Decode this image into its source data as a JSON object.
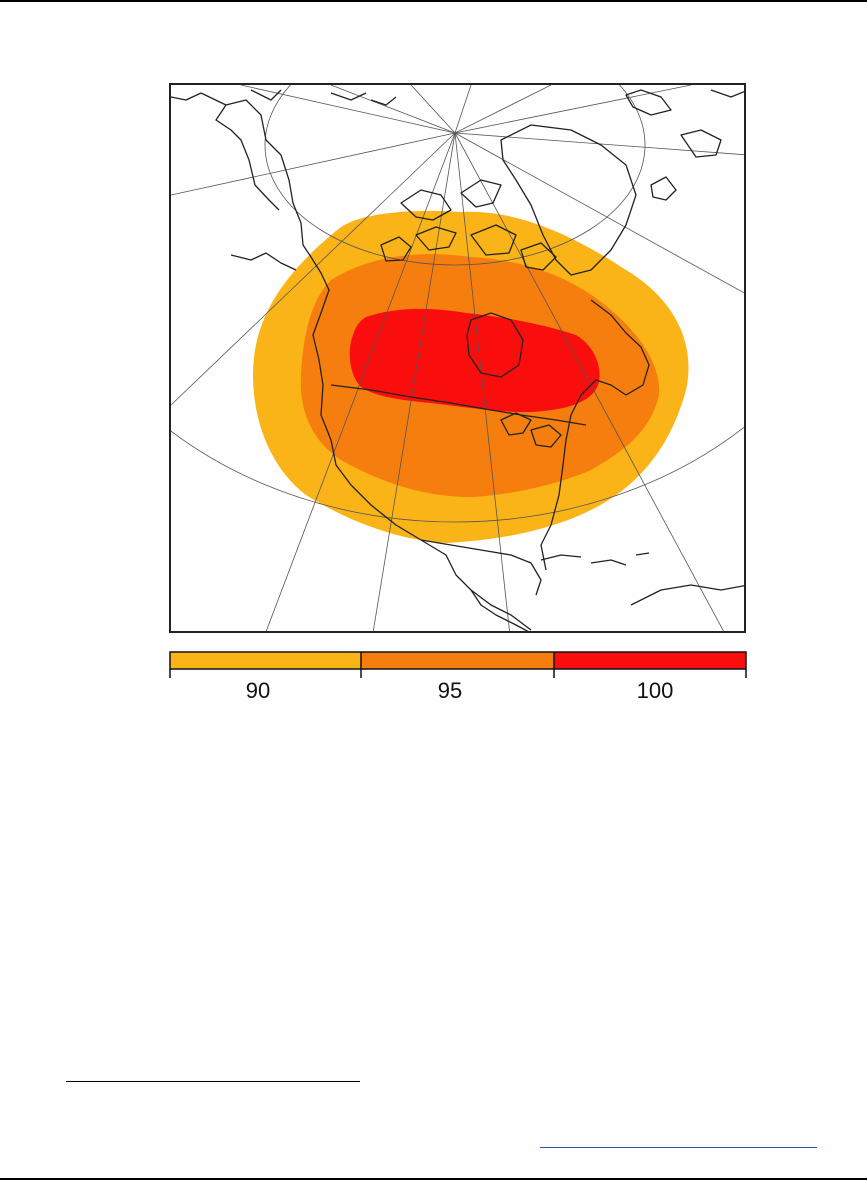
{
  "legend": {
    "bins": [
      {
        "label": "90",
        "color": "#fbb417"
      },
      {
        "label": "95",
        "color": "#f57e0f"
      },
      {
        "label": "100",
        "color": "#fa0d0d"
      }
    ]
  },
  "map": {
    "projection": "polar-stereographic",
    "region": "North America",
    "zones": [
      {
        "level": "90",
        "color": "#fbb417"
      },
      {
        "level": "95",
        "color": "#f57e0f"
      },
      {
        "level": "100",
        "color": "#fa0d0d"
      }
    ],
    "background_color": "#fefefe",
    "coastline_color": "#222222",
    "graticule_color": "#555555"
  },
  "page": {
    "footnote_link_color": "#2a4fb0"
  }
}
